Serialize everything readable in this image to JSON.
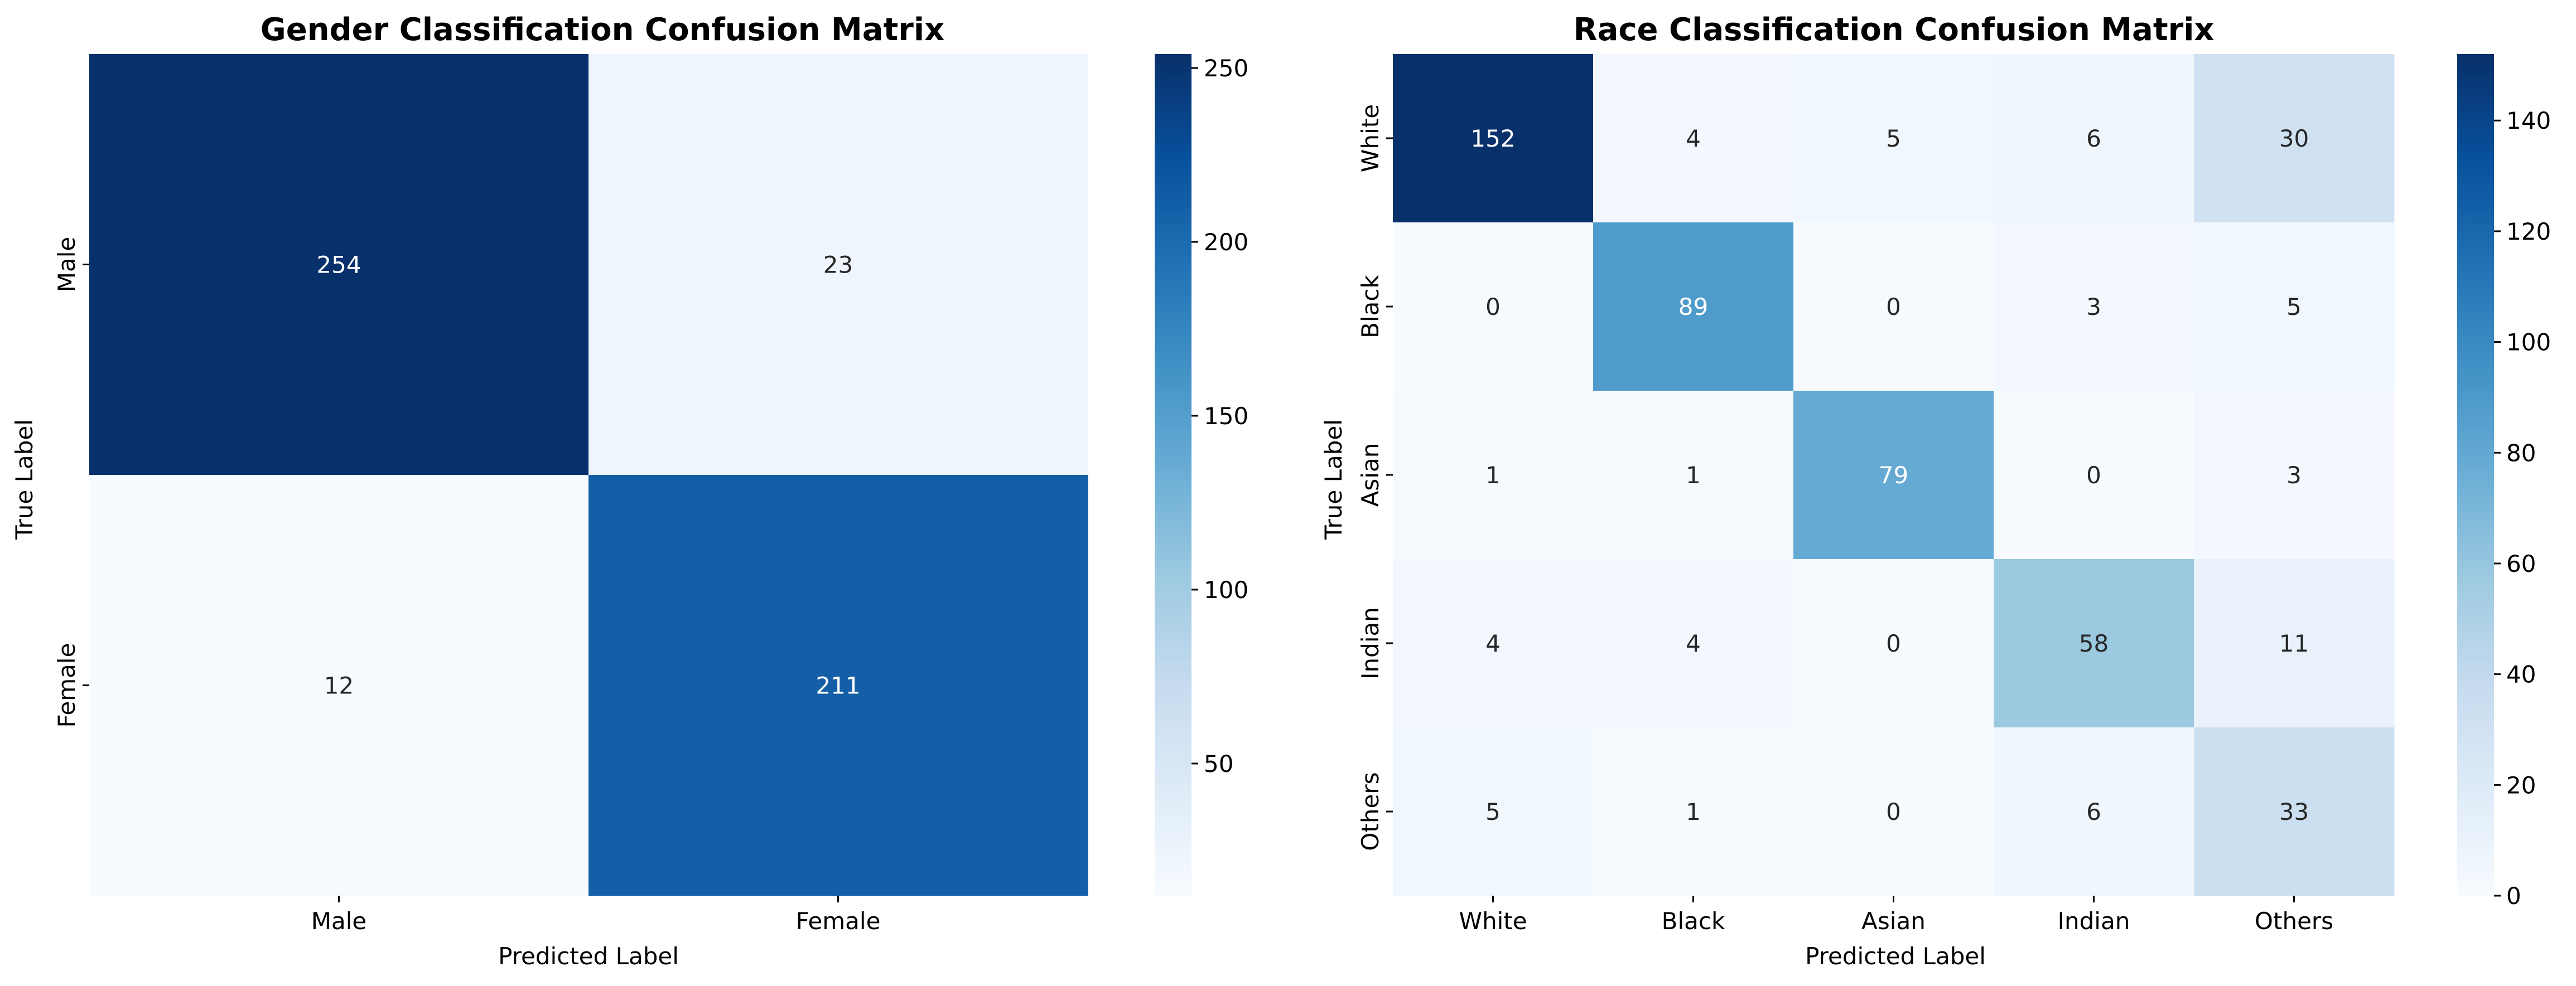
{
  "chart_data": [
    {
      "type": "heatmap",
      "title": "Gender Classification Confusion Matrix",
      "xlabel": "Predicted Label",
      "ylabel": "True Label",
      "x_categories": [
        "Male",
        "Female"
      ],
      "y_categories": [
        "Male",
        "Female"
      ],
      "values": [
        [
          254,
          23
        ],
        [
          12,
          211
        ]
      ],
      "colormap": "Blues",
      "color_range": [
        12,
        254
      ],
      "colorbar_ticks": [
        50,
        100,
        150,
        200,
        250
      ]
    },
    {
      "type": "heatmap",
      "title": "Race Classification Confusion Matrix",
      "xlabel": "Predicted Label",
      "ylabel": "True Label",
      "x_categories": [
        "White",
        "Black",
        "Asian",
        "Indian",
        "Others"
      ],
      "y_categories": [
        "White",
        "Black",
        "Asian",
        "Indian",
        "Others"
      ],
      "values": [
        [
          152,
          4,
          5,
          6,
          30
        ],
        [
          0,
          89,
          0,
          3,
          5
        ],
        [
          1,
          1,
          79,
          0,
          3
        ],
        [
          4,
          4,
          0,
          58,
          11
        ],
        [
          5,
          1,
          0,
          6,
          33
        ]
      ],
      "colormap": "Blues",
      "color_range": [
        0,
        152
      ],
      "colorbar_ticks": [
        0,
        20,
        40,
        60,
        80,
        100,
        120,
        140
      ]
    }
  ]
}
